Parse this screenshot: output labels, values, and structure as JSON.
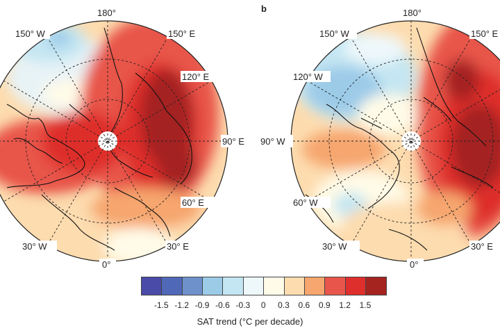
{
  "panels": [
    {
      "letter": "",
      "labels": {
        "lon180": "180°",
        "lon150w": "150° W",
        "lon150e": "150° E",
        "lon120e": "120° E",
        "lon90e": "90° E",
        "lon60e": "60° E",
        "lon30e": "30° E",
        "lon0": "0°",
        "lon30w": "30° W"
      }
    },
    {
      "letter": "b",
      "labels": {
        "lon180": "180°",
        "lon150w": "150° W",
        "lon150e": "150° E",
        "lon120w": "120° W",
        "lon90w": "90° W",
        "lon60w": "60° W",
        "lon30w": "30° W",
        "lon0": "0°",
        "lon30e": "30° E"
      }
    }
  ],
  "colorbar": {
    "colors": [
      "#4a4ba8",
      "#4f68b8",
      "#6e91cb",
      "#9ccbe8",
      "#c4e6f2",
      "#eef8fb",
      "#fffbe8",
      "#fddcaf",
      "#f6a66e",
      "#e8554a",
      "#de2f2c",
      "#a52420"
    ],
    "ticks": [
      "-1.5",
      "-1.2",
      "-0.9",
      "-0.6",
      "-0.3",
      "0",
      "0.3",
      "0.6",
      "0.9",
      "1.2",
      "1.5"
    ],
    "label": "SAT trend (°C per decade)"
  }
}
